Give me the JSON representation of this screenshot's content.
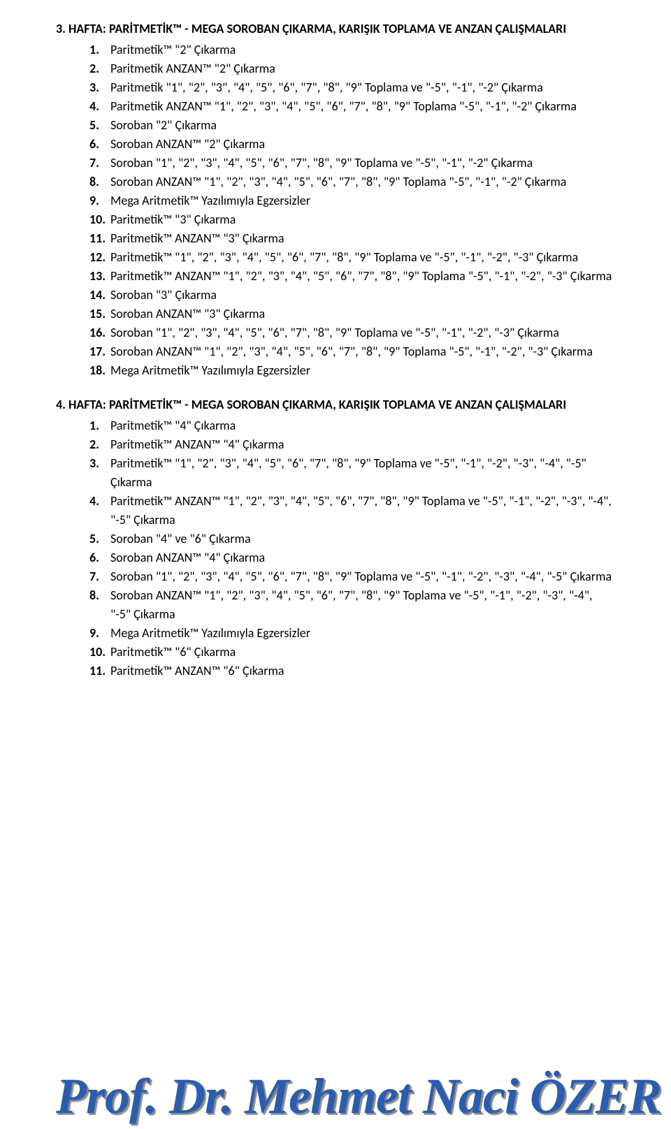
{
  "section1": {
    "header": "3. HAFTA: PARİTMETİK™ - MEGA SOROBAN ÇIKARMA, KARIŞIK TOPLAMA VE ANZAN ÇALIŞMALARI",
    "items": [
      "Paritmetik™ \"2\" Çıkarma",
      "Paritmetik ANZAN™ \"2\" Çıkarma",
      "Paritmetik  \"1\", \"2\", \"3\", \"4\", \"5\", \"6\", \"7\", \"8\", \"9\" Toplama ve \"-5\", \"-1\", \"-2\" Çıkarma",
      "Paritmetik  ANZAN™ \"1\", \"2\", \"3\", \"4\", \"5\", \"6\", \"7\", \"8\", \"9\" Toplama \"-5\", \"-1\", \"-2\" Çıkarma",
      "Soroban \"2\" Çıkarma",
      "Soroban  ANZAN™ \"2\" Çıkarma",
      "Soroban  \"1\", \"2\", \"3\", \"4\", \"5\", \"6\", \"7\", \"8\", \"9\" Toplama ve \"-5\", \"-1\", \"-2\" Çıkarma",
      "Soroban  ANZAN™ \"1\", \"2\", \"3\", \"4\", \"5\", \"6\", \"7\", \"8\", \"9\" Toplama \"-5\", \"-1\", \"-2\" Çıkarma",
      "Mega Aritmetik™ Yazılımıyla Egzersizler",
      "Paritmetik™ \"3\" Çıkarma",
      "Paritmetik™ ANZAN™ \"3\" Çıkarma",
      "Paritmetik™ \"1\", \"2\", \"3\", \"4\", \"5\", \"6\", \"7\", \"8\", \"9\" Toplama ve \"-5\", \"-1\", \"-2\", \"-3\" Çıkarma",
      "Paritmetik™  ANZAN™ \"1\", \"2\", \"3\", \"4\", \"5\", \"6\", \"7\", \"8\", \"9\" Toplama \"-5\", \"-1\", \"-2\", \"-3\"   Çıkarma",
      "Soroban \"3\" Çıkarma",
      "Soroban  ANZAN™ \"3\" Çıkarma",
      "Soroban  \"1\", \"2\", \"3\", \"4\", \"5\", \"6\", \"7\", \"8\", \"9\" Toplama ve \"-5\", \"-1\", \"-2\", \"-3\" Çıkarma",
      "Soroban  ANZAN™ \"1\", \"2\", \"3\", \"4\", \"5\", \"6\", \"7\", \"8\", \"9\" Toplama \"-5\", \"-1\", \"-2\", \"-3\"   Çıkarma",
      "Mega Aritmetik™ Yazılımıyla Egzersizler"
    ]
  },
  "section2": {
    "header": "4. HAFTA: PARİTMETİK™ - MEGA SOROBAN ÇIKARMA, KARIŞIK TOPLAMA VE ANZAN ÇALIŞMALARI",
    "items": [
      "Paritmetik™ \"4\" Çıkarma",
      "Paritmetik™ ANZAN™ \"4\" Çıkarma",
      "Paritmetik™ \"1\", \"2\", \"3\", \"4\", \"5\", \"6\", \"7\", \"8\", \"9\" Toplama ve \"-5\", \"-1\", \"-2\", \"-3\", \"-4\", \"-5\" Çıkarma",
      "Paritmetik™ ANZAN™ \"1\", \"2\", \"3\", \"4\", \"5\", \"6\", \"7\", \"8\", \"9\" Toplama ve \"-5\", \"-1\", \"-2\", \"-3\", \"-4\", \"-5\" Çıkarma",
      "Soroban \"4\" ve \"6\" Çıkarma",
      "Soroban  ANZAN™ \"4\" Çıkarma",
      "Soroban \"1\", \"2\", \"3\", \"4\", \"5\", \"6\", \"7\", \"8\", \"9\" Toplama ve \"-5\", \"-1\", \"-2\", \"-3\", \"-4\", \"-5\" Çıkarma",
      "Soroban ANZAN™  \"1\", \"2\", \"3\", \"4\", \"5\", \"6\", \"7\", \"8\", \"9\" Toplama ve \"-5\", \"-1\", \"-2\", \"-3\", \"-4\", \"-5\" Çıkarma",
      "Mega Aritmetik™ Yazılımıyla Egzersizler",
      "Paritmetik™ \"6\" Çıkarma",
      "Paritmetik™ ANZAN™ \"6\" Çıkarma"
    ]
  },
  "signature": "Prof. Dr. Mehmet Naci ÖZER",
  "colors": {
    "text": "#000000",
    "signature": "#2a5db0",
    "background": "#ffffff"
  }
}
